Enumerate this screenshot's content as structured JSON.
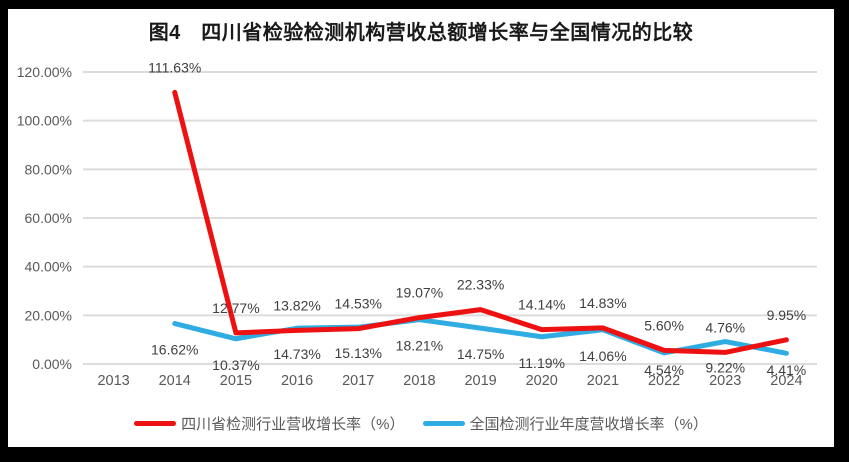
{
  "frame": {
    "border_color": "#000000",
    "background": "#ffffff"
  },
  "chart_data": {
    "type": "line",
    "title": "图4　四川省检验检测机构营收总额增长率与全国情况的比较",
    "categories": [
      "2013",
      "2014",
      "2015",
      "2016",
      "2017",
      "2018",
      "2019",
      "2020",
      "2021",
      "2022",
      "2023",
      "2024"
    ],
    "series": [
      {
        "name": "全国检测行业年度营收增长率（%）",
        "color": "#2fade2",
        "label_position": "below",
        "values": [
          null,
          16.62,
          10.37,
          14.73,
          15.13,
          18.21,
          14.75,
          11.19,
          14.06,
          4.54,
          9.22,
          4.41
        ]
      },
      {
        "name": "四川省检测行业营收增长率（%）",
        "color": "#ee1111",
        "label_position": "above",
        "values": [
          null,
          111.63,
          12.77,
          13.82,
          14.53,
          19.07,
          22.33,
          14.14,
          14.83,
          5.6,
          4.76,
          9.95
        ]
      }
    ],
    "y_axis": {
      "min": 0,
      "max": 120,
      "step": 20,
      "ticks": [
        "0.00%",
        "20.00%",
        "40.00%",
        "60.00%",
        "80.00%",
        "100.00%",
        "120.00%"
      ]
    },
    "grid": true,
    "legend_position": "bottom",
    "colors": {
      "grid": "#dcdcdc",
      "axis_text": "#595959",
      "data_label": "#404040"
    }
  },
  "legend": {
    "items": [
      {
        "label": "四川省检测行业营收增长率（%）"
      },
      {
        "label": "全国检测行业年度营收增长率（%）"
      }
    ]
  }
}
